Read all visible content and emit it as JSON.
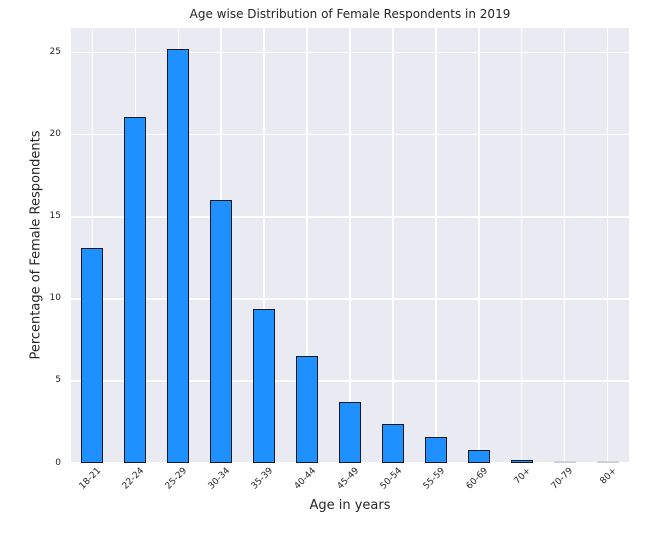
{
  "chart_data": {
    "type": "bar",
    "title": "Age wise Distribution of Female Respondents in 2019",
    "xlabel": "Age in years",
    "ylabel": "Percentage of Female Respondents",
    "categories": [
      "18-21",
      "22-24",
      "25-29",
      "30-34",
      "35-39",
      "40-44",
      "45-49",
      "50-54",
      "55-59",
      "60-69",
      "70+",
      "70-79",
      "80+"
    ],
    "values": [
      13.1,
      21.1,
      25.2,
      16.0,
      9.4,
      6.5,
      3.7,
      2.4,
      1.6,
      0.8,
      0.2,
      0.0,
      0.0
    ],
    "yticks": [
      0,
      5,
      10,
      15,
      20,
      25
    ],
    "ylim": [
      0,
      26.5
    ],
    "grid": true,
    "legend_position": "none",
    "x_tick_rotation_deg": 45,
    "colors": {
      "bar_fill": "#1e90ff",
      "bar_edge": "#17171f",
      "plot_background": "#eaeaf2",
      "gridline": "#ffffff",
      "text": "#262626",
      "figure_background": "#ffffff",
      "zero_bar": "#cfcfd7"
    }
  }
}
